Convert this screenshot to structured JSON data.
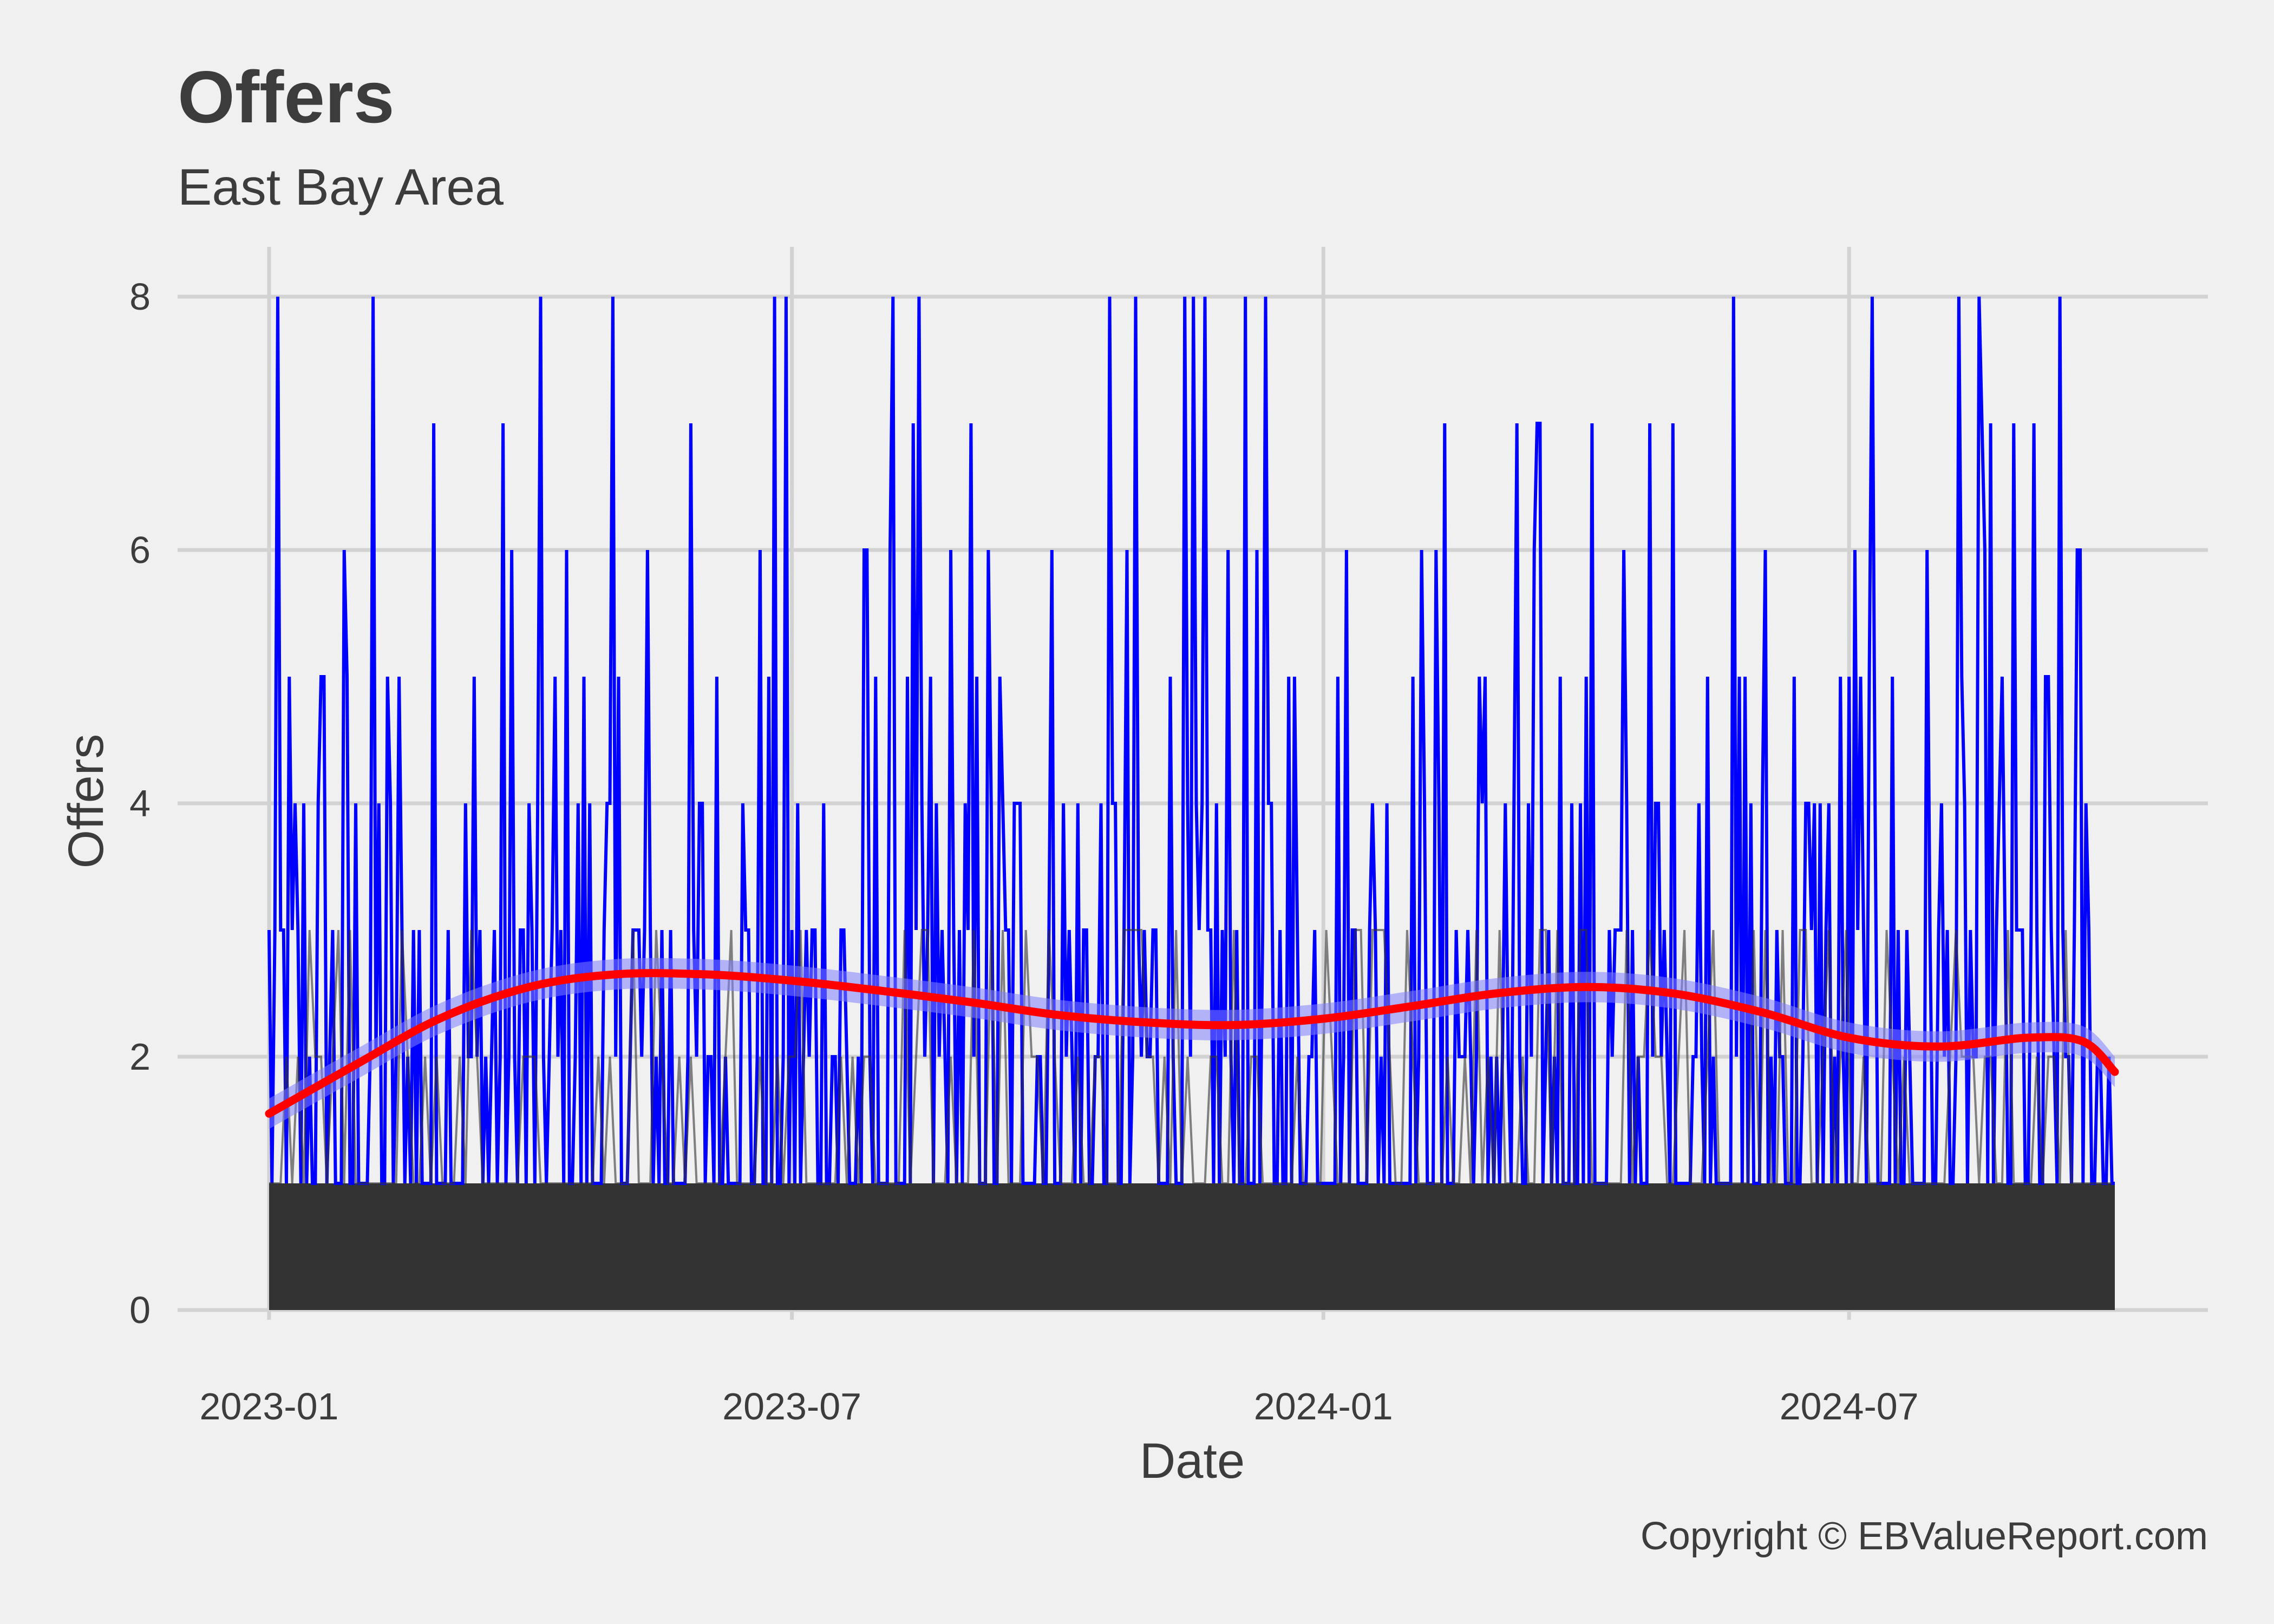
{
  "chart_data": {
    "type": "line",
    "title": "Offers",
    "subtitle": "East Bay  Area",
    "xlabel": "Date",
    "ylabel": "Offers",
    "caption": "Copyright  © EBValueReport.com",
    "x_range": [
      "2023-01-01",
      "2024-10-01"
    ],
    "ylim": [
      0,
      8
    ],
    "x_ticks": [
      "2023-01",
      "2023-07",
      "2024-01",
      "2024-07"
    ],
    "y_ticks": [
      0,
      2,
      4,
      6,
      8
    ],
    "grid": true,
    "legend": "none",
    "series": [
      {
        "role": "daily offers",
        "color": "#0000ff",
        "baseline_floor": 1,
        "peak_frequency": {
          "value_8": "frequent",
          "value_7": "frequent",
          "value_6": "frequent"
        },
        "note_visible": "daily counts spike between 1 and 8 throughout the period"
      },
      {
        "role": "area fill",
        "color": "#333333",
        "constant_level": 1
      },
      {
        "role": "smoothed trend",
        "color": "#ff0000",
        "points": [
          {
            "x": "2023-01-01",
            "y": 1.55
          },
          {
            "x": "2023-02-01",
            "y": 1.95
          },
          {
            "x": "2023-03-01",
            "y": 2.3
          },
          {
            "x": "2023-04-01",
            "y": 2.55
          },
          {
            "x": "2023-05-01",
            "y": 2.65
          },
          {
            "x": "2023-06-01",
            "y": 2.65
          },
          {
            "x": "2023-07-01",
            "y": 2.6
          },
          {
            "x": "2023-08-01",
            "y": 2.52
          },
          {
            "x": "2023-09-01",
            "y": 2.43
          },
          {
            "x": "2023-10-01",
            "y": 2.33
          },
          {
            "x": "2023-11-01",
            "y": 2.27
          },
          {
            "x": "2023-12-01",
            "y": 2.25
          },
          {
            "x": "2024-01-01",
            "y": 2.3
          },
          {
            "x": "2024-02-01",
            "y": 2.4
          },
          {
            "x": "2024-03-01",
            "y": 2.5
          },
          {
            "x": "2024-04-01",
            "y": 2.55
          },
          {
            "x": "2024-05-01",
            "y": 2.5
          },
          {
            "x": "2024-06-01",
            "y": 2.35
          },
          {
            "x": "2024-07-01",
            "y": 2.15
          },
          {
            "x": "2024-08-01",
            "y": 2.08
          },
          {
            "x": "2024-09-01",
            "y": 2.15
          },
          {
            "x": "2024-09-20",
            "y": 2.12
          },
          {
            "x": "2024-10-01",
            "y": 1.88
          }
        ]
      }
    ]
  }
}
